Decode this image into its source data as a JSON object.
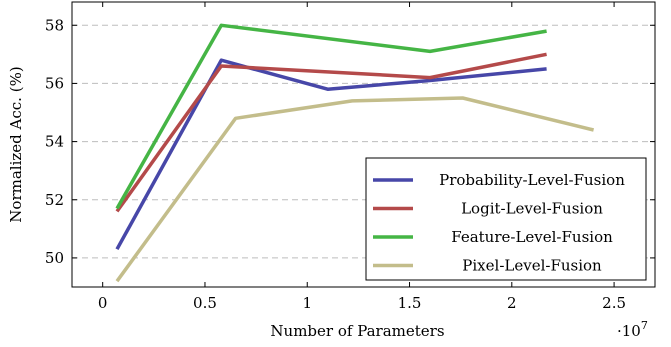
{
  "chart_data": {
    "type": "line",
    "xlabel": "Number of Parameters",
    "ylabel": "Normalized Acc. (%)",
    "x_multiplier_label": "·10",
    "x_multiplier_exp": "7",
    "xlim": [
      -0.15,
      2.7
    ],
    "ylim": [
      49.0,
      58.8
    ],
    "xticks": [
      0,
      0.5,
      1,
      1.5,
      2,
      2.5
    ],
    "xtick_labels": [
      "0",
      "0.5",
      "1",
      "1.5",
      "2",
      "2.5"
    ],
    "yticks": [
      50,
      52,
      54,
      56,
      58
    ],
    "ytick_labels": [
      "50",
      "52",
      "54",
      "56",
      "58"
    ],
    "grid": "horizontal dashed",
    "legend_position": "bottom-right",
    "series": [
      {
        "name": "Probability-Level-Fusion",
        "color": "#4747a8",
        "x": [
          0.07,
          0.58,
          1.1,
          1.6,
          2.17
        ],
        "y": [
          50.3,
          56.8,
          55.8,
          56.1,
          56.5
        ]
      },
      {
        "name": "Logit-Level-Fusion",
        "color": "#b44a4a",
        "x": [
          0.07,
          0.58,
          1.6,
          2.17
        ],
        "y": [
          51.6,
          56.6,
          56.2,
          57.0
        ]
      },
      {
        "name": "Feature-Level-Fusion",
        "color": "#45b545",
        "x": [
          0.07,
          0.58,
          1.6,
          2.17
        ],
        "y": [
          51.7,
          58.0,
          57.1,
          57.8
        ]
      },
      {
        "name": "Pixel-Level-Fusion",
        "color": "#c3bd8b",
        "x": [
          0.07,
          0.65,
          1.22,
          1.76,
          2.4
        ],
        "y": [
          49.2,
          54.8,
          55.4,
          55.5,
          54.4
        ]
      }
    ]
  }
}
